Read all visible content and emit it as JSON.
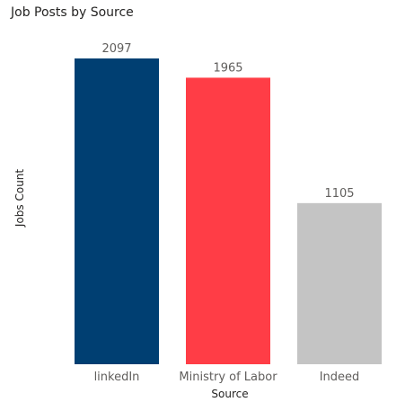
{
  "chart_data": {
    "type": "bar",
    "title": "Job Posts by Source",
    "xlabel": "Source",
    "ylabel": "Jobs Count",
    "categories": [
      "linkedIn",
      "Ministry of Labor",
      "Indeed"
    ],
    "values": [
      2097,
      1965,
      1105
    ],
    "colors": [
      "#003f72",
      "#ff3d46",
      "#c4c4c4"
    ],
    "ylim": [
      0,
      2097
    ],
    "grid": false,
    "legend": "none"
  }
}
